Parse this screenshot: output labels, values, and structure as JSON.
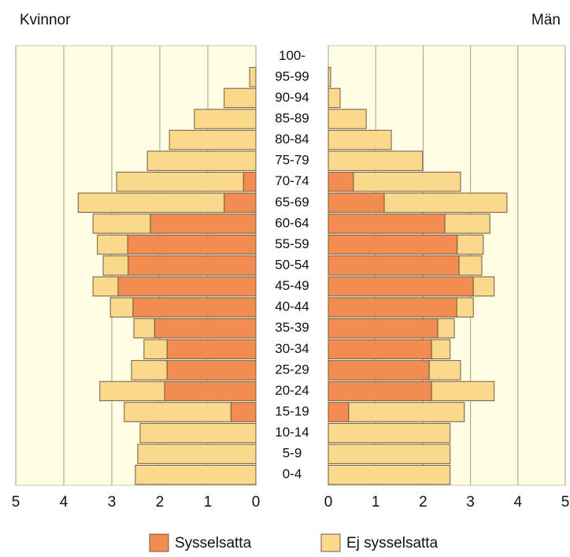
{
  "chart_data": {
    "type": "bar",
    "orientation": "horizontal",
    "categories": [
      "0-4",
      "5-9",
      "10-14",
      "15-19",
      "20-24",
      "25-29",
      "30-34",
      "35-39",
      "40-44",
      "45-49",
      "50-54",
      "55-59",
      "60-64",
      "65-69",
      "70-74",
      "75-79",
      "80-84",
      "85-89",
      "90-94",
      "95-99",
      "100-"
    ],
    "xlim": [
      0,
      5
    ],
    "xticks": [
      0,
      1,
      2,
      3,
      4,
      5
    ],
    "grid": true,
    "series": [
      {
        "name": "Sysselsatta",
        "color": "#f28c50"
      },
      {
        "name": "Ej sysselsatta",
        "color": "#fbd98c"
      }
    ],
    "panels": [
      {
        "title": "Kvinnor",
        "side": "left",
        "values": [
          [
            0,
            0,
            0,
            0.52,
            1.9,
            1.85,
            1.85,
            2.11,
            2.56,
            2.87,
            2.66,
            2.67,
            2.2,
            0.66,
            0.26,
            0,
            0,
            0,
            0,
            0,
            0
          ],
          [
            2.51,
            2.46,
            2.41,
            2.22,
            1.35,
            0.74,
            0.48,
            0.43,
            0.47,
            0.52,
            0.52,
            0.63,
            1.19,
            3.04,
            2.64,
            2.26,
            1.8,
            1.28,
            0.66,
            0.13,
            0
          ]
        ]
      },
      {
        "title": "Män",
        "side": "right",
        "values": [
          [
            0,
            0,
            0,
            0.43,
            2.18,
            2.13,
            2.18,
            2.31,
            2.71,
            3.06,
            2.76,
            2.72,
            2.46,
            1.18,
            0.53,
            0,
            0,
            0,
            0,
            0,
            0
          ],
          [
            2.57,
            2.57,
            2.57,
            2.44,
            1.32,
            0.66,
            0.39,
            0.35,
            0.35,
            0.44,
            0.48,
            0.55,
            0.95,
            2.59,
            2.26,
            1.99,
            1.33,
            0.8,
            0.25,
            0.05,
            0
          ]
        ]
      }
    ]
  }
}
